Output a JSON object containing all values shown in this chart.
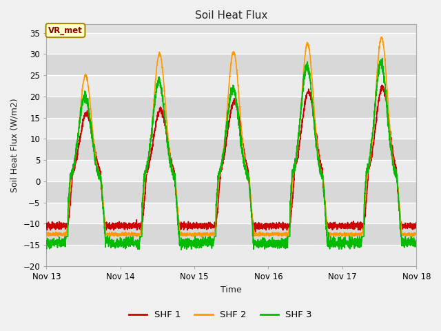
{
  "title": "Soil Heat Flux",
  "xlabel": "Time",
  "ylabel": "Soil Heat Flux (W/m2)",
  "ylim": [
    -20,
    37
  ],
  "yticks": [
    -20,
    -15,
    -10,
    -5,
    0,
    5,
    10,
    15,
    20,
    25,
    30,
    35
  ],
  "x_tick_labels": [
    "Nov 13",
    "Nov 14",
    "Nov 15",
    "Nov 16",
    "Nov 17",
    "Nov 18"
  ],
  "legend_colors": [
    "#cc0000",
    "#ff9900",
    "#00bb00"
  ],
  "legend_labels": [
    "SHF 1",
    "SHF 2",
    "SHF 3"
  ],
  "line_width": 1.2,
  "fig_bg_color": "#f0f0f0",
  "plot_bg_color": "#e0e0e0",
  "annotation_text": "VR_met",
  "annotation_bg": "#ffffcc",
  "annotation_border": "#aa8800",
  "shf1_night": -10.5,
  "shf2_night": -12.5,
  "shf3_night": -14.5,
  "shf1_day_amps": [
    16,
    17,
    19,
    21,
    22
  ],
  "shf2_day_amps": [
    25,
    30,
    30.5,
    32.5,
    34
  ],
  "shf3_day_amps": [
    20,
    23.5,
    22,
    27,
    28
  ],
  "rise_hour": 8.5,
  "fall_hour": 17.5,
  "peak_hour": 13.0,
  "sigma": 2.2
}
